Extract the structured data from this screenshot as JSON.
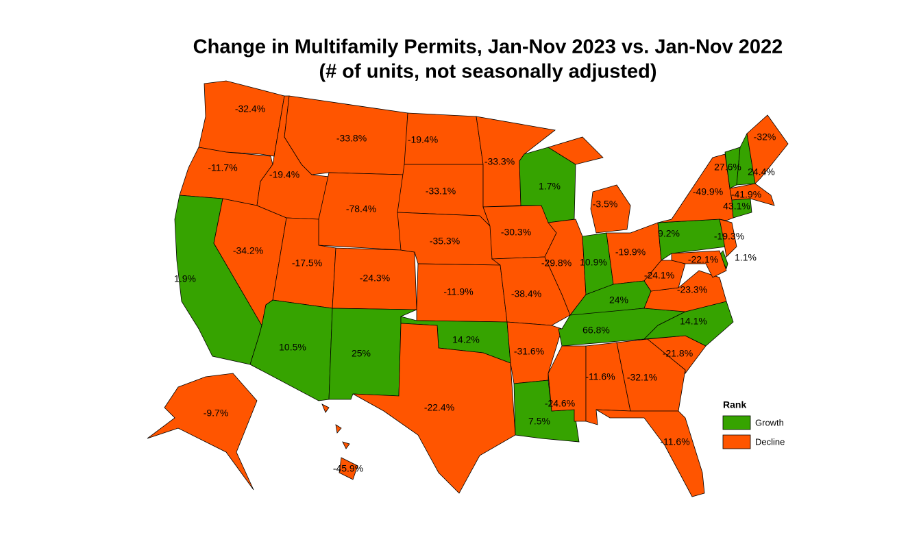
{
  "chart_data": {
    "type": "map",
    "title": "Change in Multifamily Permits, Jan-Nov 2023 vs. Jan-Nov 2022",
    "subtitle": "(# of units, not seasonally adjusted)",
    "values": [
      -32.4,
      -11.7,
      1.9,
      -34.2,
      -19.4,
      -33.8,
      -78.4,
      -17.5,
      -24.3,
      10.5,
      25,
      -19.4,
      -33.1,
      -35.3,
      -11.9,
      14.2,
      -22.4,
      -33.3,
      -30.3,
      -38.4,
      -31.6,
      7.5,
      1.7,
      -29.8,
      -3.5,
      10.9,
      -19.9,
      24,
      66.8,
      -24.6,
      -11.6,
      -32.1,
      -11.6,
      -21.8,
      14.1,
      -23.3,
      -24.1,
      9.2,
      -49.9,
      27.6,
      24.4,
      -32,
      -41.9,
      43.1,
      -19.3,
      1.1,
      -22.1,
      -9.7,
      -45.9
    ],
    "value_labels": [
      "-32.4%",
      "-11.7%",
      "1.9%",
      "-34.2%",
      "-19.4%",
      "-33.8%",
      "-78.4%",
      "-17.5%",
      "-24.3%",
      "10.5%",
      "25%",
      "-19.4%",
      "-33.1%",
      "-35.3%",
      "-11.9%",
      "14.2%",
      "-22.4%",
      "-33.3%",
      "-30.3%",
      "-38.4%",
      "-31.6%",
      "7.5%",
      "1.7%",
      "-29.8%",
      "-3.5%",
      "10.9%",
      "-19.9%",
      "24%",
      "66.8%",
      "-24.6%",
      "-11.6%",
      "-32.1%",
      "-11.6%",
      "-21.8%",
      "14.1%",
      "-23.3%",
      "-24.1%",
      "9.2%",
      "-49.9%",
      "27.6%",
      "24.4%",
      "-32%",
      "-41.9%",
      "43.1%",
      "-19.3%",
      "1.1%",
      "-22.1%",
      "-9.7%",
      "-45.9%"
    ],
    "rank": [
      "Decline",
      "Decline",
      "Growth",
      "Decline",
      "Decline",
      "Decline",
      "Decline",
      "Decline",
      "Decline",
      "Growth",
      "Growth",
      "Decline",
      "Decline",
      "Decline",
      "Decline",
      "Growth",
      "Decline",
      "Decline",
      "Decline",
      "Decline",
      "Decline",
      "Growth",
      "Growth",
      "Decline",
      "Decline",
      "Growth",
      "Decline",
      "Growth",
      "Growth",
      "Decline",
      "Decline",
      "Decline",
      "Decline",
      "Decline",
      "Growth",
      "Decline",
      "Decline",
      "Growth",
      "Decline",
      "Growth",
      "Growth",
      "Decline",
      "Decline",
      "Growth",
      "Decline",
      "Growth",
      "Decline",
      "Decline",
      "Decline"
    ],
    "legend": {
      "title": "Rank",
      "items": [
        {
          "name": "Growth",
          "color": "#36a300"
        },
        {
          "name": "Decline",
          "color": "#ff5500"
        }
      ]
    }
  }
}
